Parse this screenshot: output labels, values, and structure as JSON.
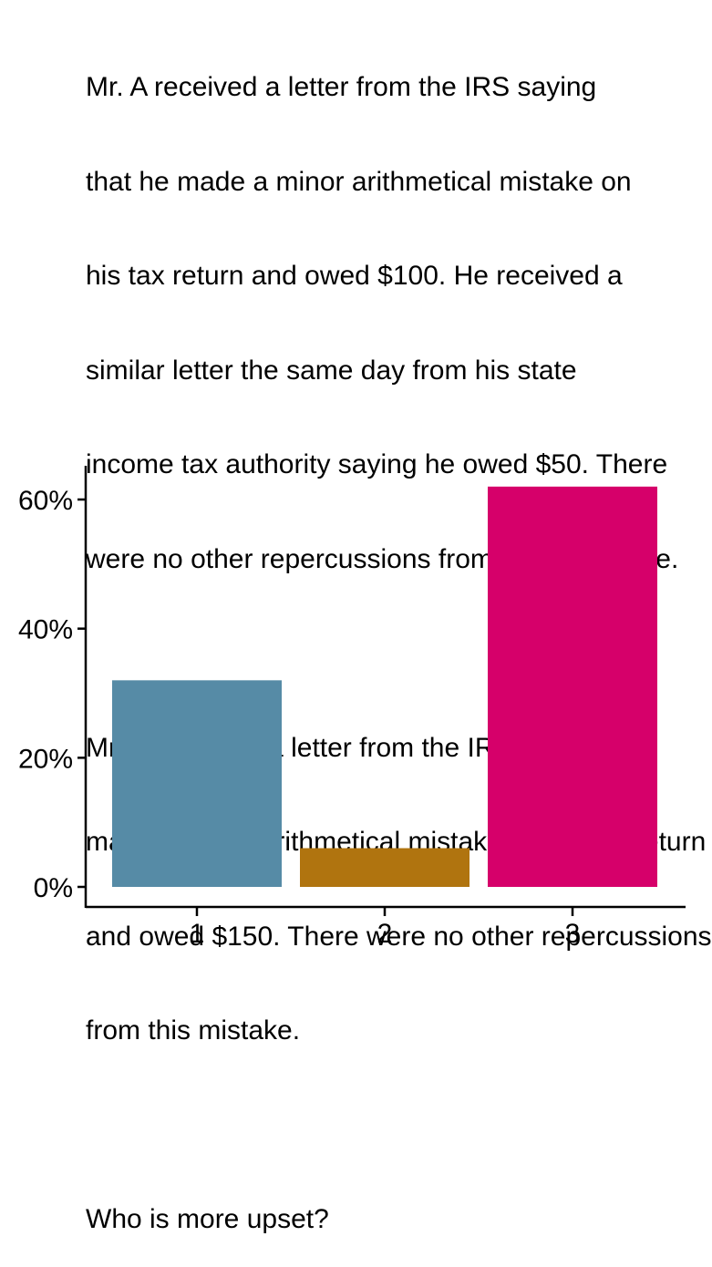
{
  "question": {
    "lines": [
      "Mr. A received a letter from the IRS saying",
      "that he made a minor arithmetical mistake on",
      "his tax return and owed $100. He received a",
      "similar letter the same day from his state",
      "income tax authority saying he owed $50. There",
      "were no other repercussions from either mistake.",
      "",
      "Mr. B received a letter from the IRS saying he",
      "made a minor arithmetical mistake on his tax return",
      "and owed $150. There were no other repercussions",
      "from this mistake.",
      "",
      "Who is more upset?"
    ]
  },
  "chart_data": {
    "type": "bar",
    "categories": [
      "1",
      "2",
      "3"
    ],
    "values": [
      0.32,
      0.06,
      0.62
    ],
    "colors": [
      "#568ba6",
      "#b0740f",
      "#d6006a"
    ],
    "ylim": [
      0,
      0.65
    ],
    "yticks": [
      0,
      0.2,
      0.4,
      0.6
    ],
    "ytick_labels": [
      "0%",
      "20%",
      "40%",
      "60%"
    ],
    "title": "",
    "xlabel": "",
    "ylabel": "",
    "grid": false,
    "legend": "none"
  }
}
